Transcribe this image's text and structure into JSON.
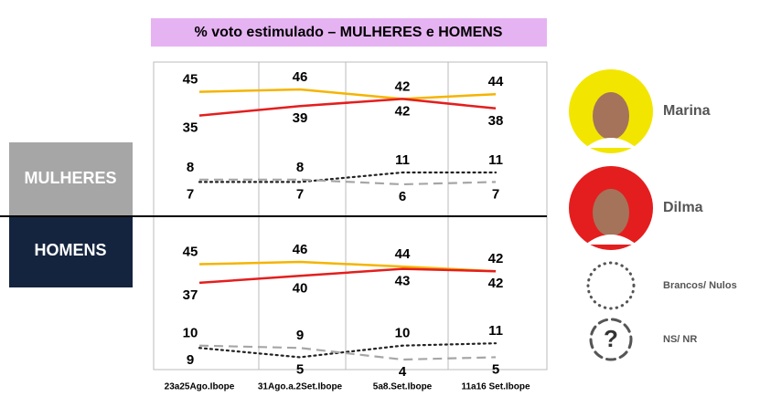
{
  "chart_data": {
    "type": "line",
    "title": "% voto estimulado – MULHERES e HOMENS",
    "categories": [
      "23a25Ago.Ibope",
      "31Ago.a.2Set.Ibope",
      "5a8.Set.Ibope",
      "11a16 Set.Ibope"
    ],
    "series": [
      {
        "name": "Marina",
        "color": "#f5b400",
        "dash": "none"
      },
      {
        "name": "Dilma",
        "color": "#e41e1e",
        "dash": "none"
      },
      {
        "name": "Brancos/ Nulos",
        "color": "#222222",
        "dash": "dotted"
      },
      {
        "name": "NS/ NR",
        "color": "#a6a6a6",
        "dash": "dashed",
        "icon_text": "?"
      }
    ],
    "panels": [
      {
        "label": "MULHERES",
        "series": [
          {
            "values": [
              45,
              46,
              42,
              44
            ]
          },
          {
            "values": [
              35,
              39,
              42,
              38
            ]
          },
          {
            "values": [
              7,
              7,
              11,
              11
            ]
          },
          {
            "values": [
              8,
              8,
              6,
              7
            ]
          }
        ]
      },
      {
        "label": "HOMENS",
        "series": [
          {
            "values": [
              45,
              46,
              44,
              42
            ]
          },
          {
            "values": [
              37,
              40,
              43,
              42
            ]
          },
          {
            "values": [
              9,
              5,
              10,
              11
            ]
          },
          {
            "values": [
              10,
              9,
              4,
              5
            ]
          }
        ]
      }
    ]
  }
}
